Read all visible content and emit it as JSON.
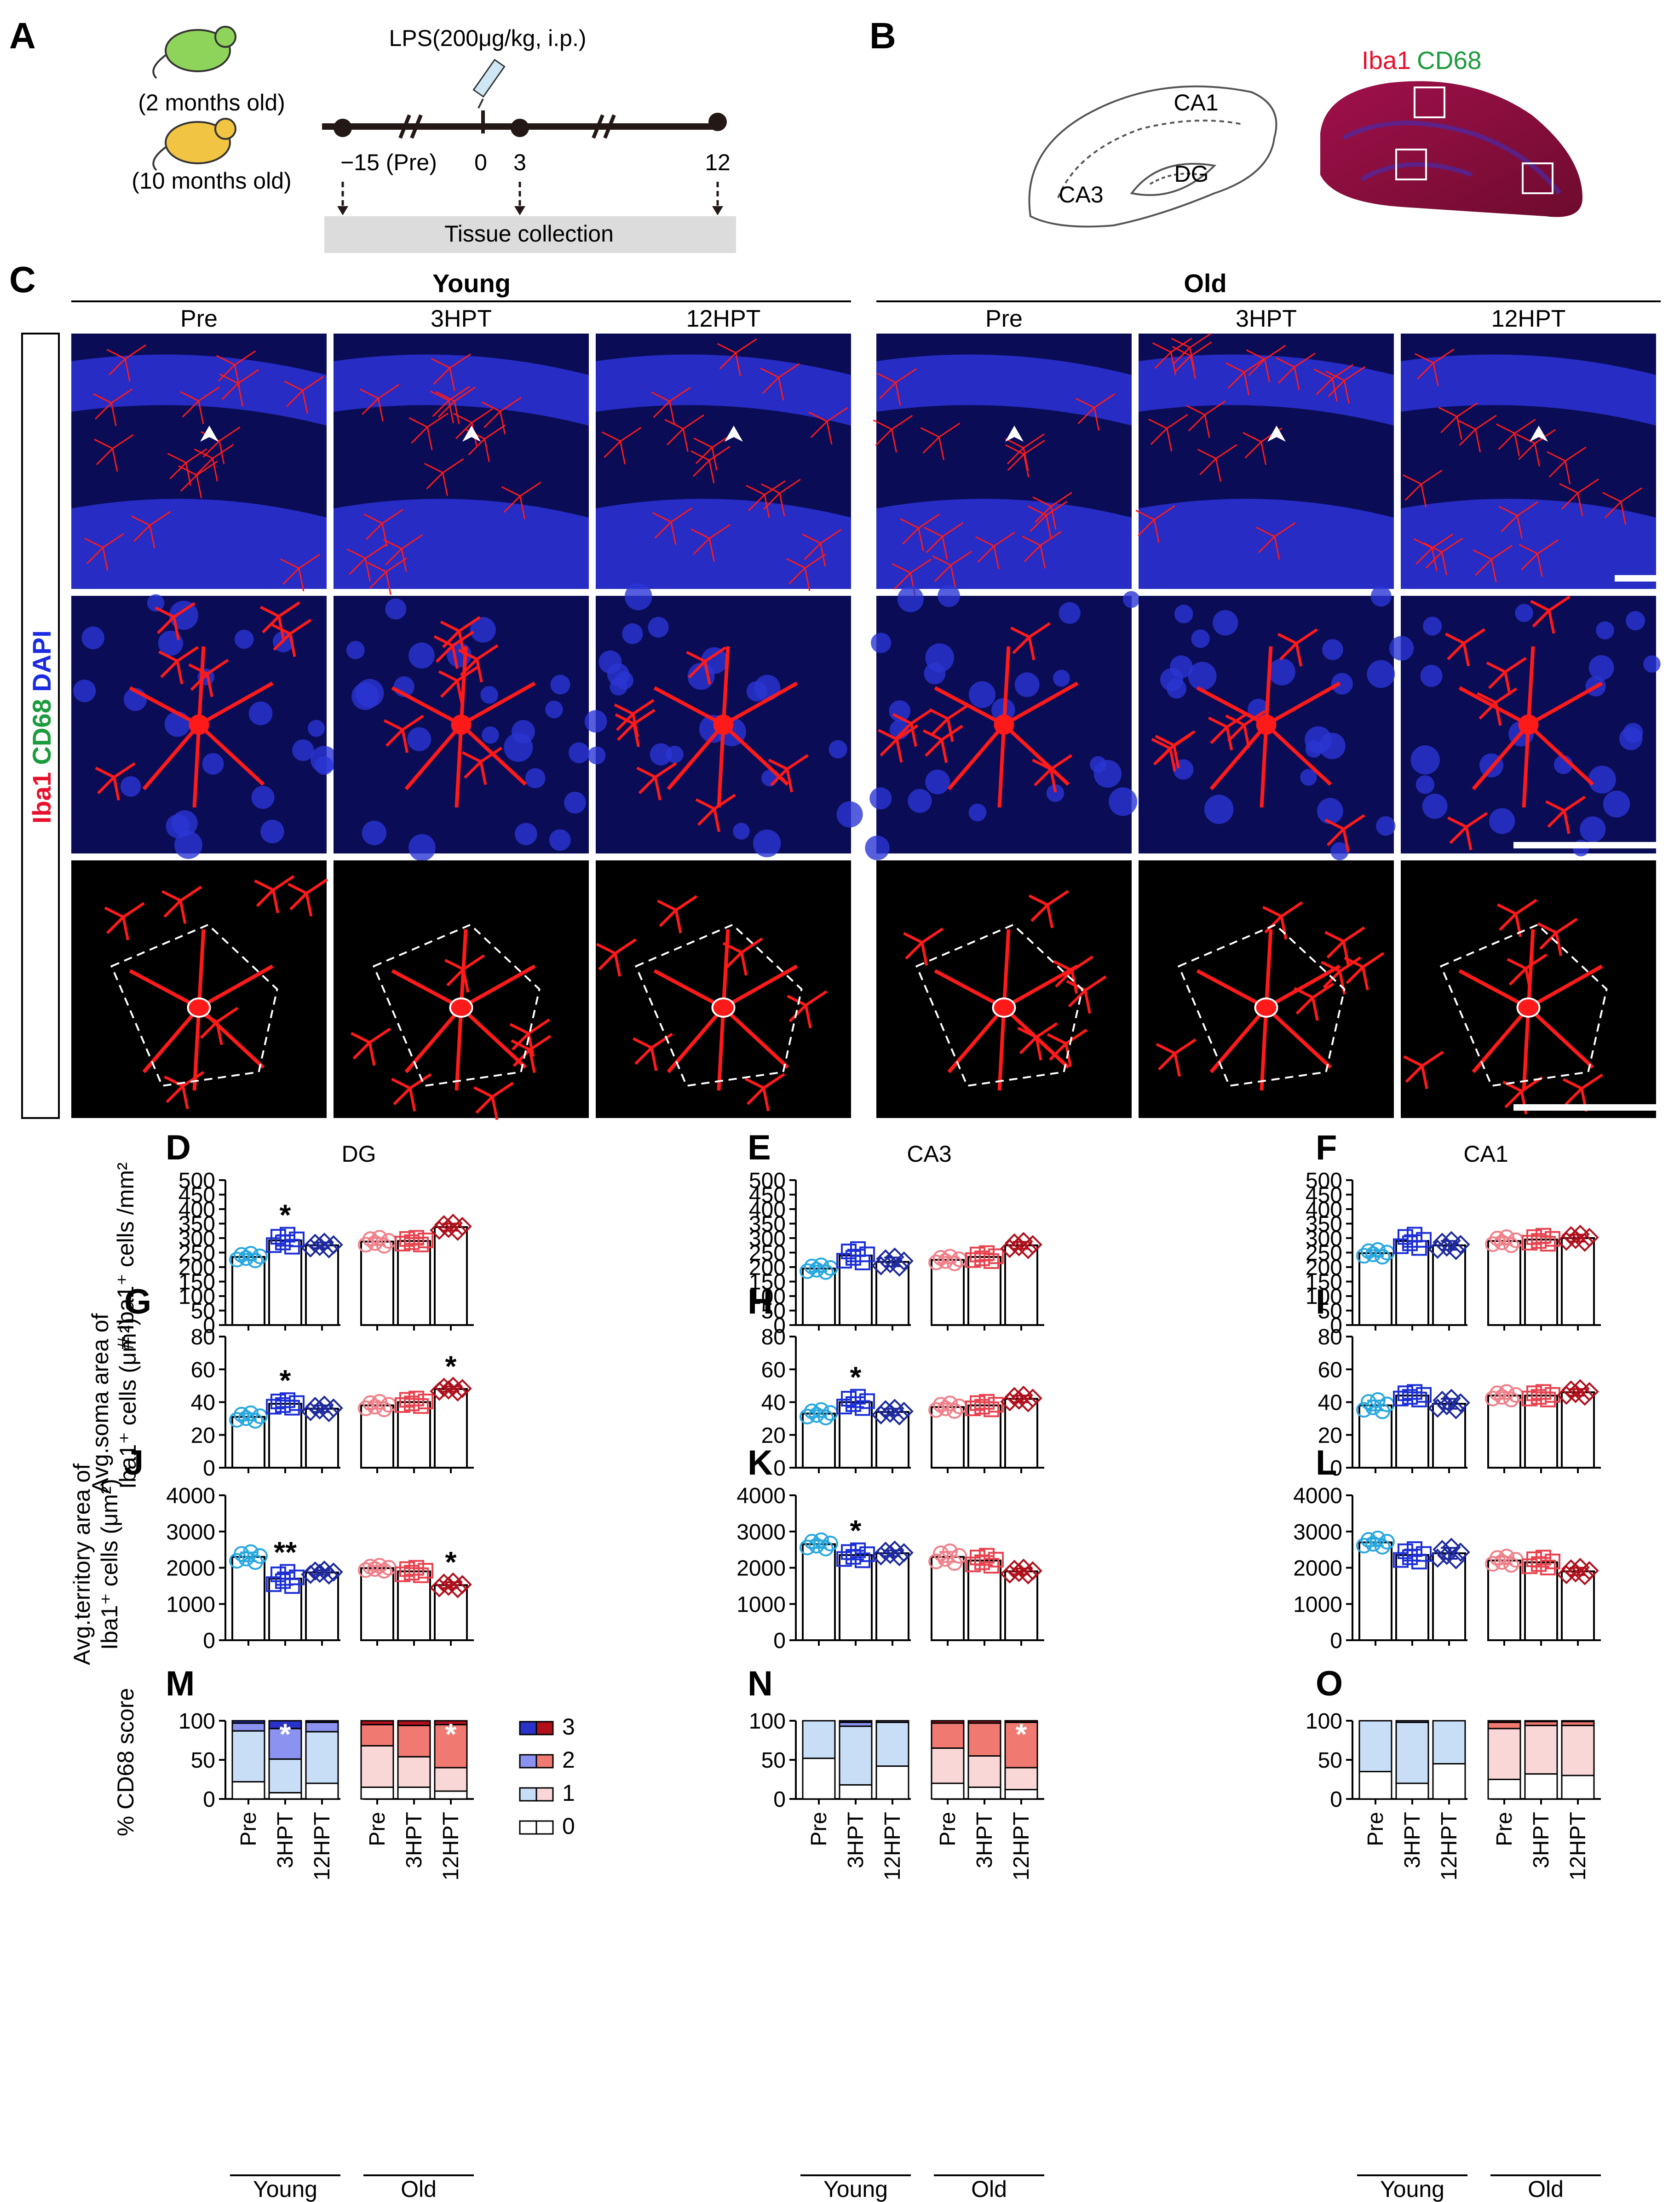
{
  "panelA": {
    "letter": "A",
    "age_young": "(2 months old)",
    "age_old": "(10 months old)",
    "injection": "LPS(200μg/kg, i.p.)",
    "tick_pre": "−15 (Pre)",
    "tick_0": "0",
    "tick_3": "3",
    "tick_12": "12",
    "tissue": "Tissue collection"
  },
  "panelB": {
    "letter": "B",
    "stain_iba1": "Iba1",
    "stain_cd68": "CD68",
    "ca1": "CA1",
    "ca3": "CA3",
    "dg": "DG",
    "colors": {
      "iba1": "#e8112d",
      "cd68": "#1a9b3c",
      "tissue": "#8a0f3a"
    }
  },
  "panelC": {
    "letter": "C",
    "group_young": "Young",
    "group_old": "Old",
    "columns": [
      "Pre",
      "3HPT",
      "12HPT",
      "Pre",
      "3HPT",
      "12HPT"
    ],
    "side_iba1": "Iba1",
    "side_cd68": "CD68",
    "side_dapi": "DAPI",
    "colors": {
      "iba1": "#e8112d",
      "cd68": "#1a9b3c",
      "dapi": "#1a2ae0"
    }
  },
  "letters": {
    "D": "D",
    "E": "E",
    "F": "F",
    "G": "G",
    "H": "H",
    "I": "I",
    "J": "J",
    "K": "K",
    "L": "L",
    "M": "M",
    "N": "N",
    "O": "O"
  },
  "region_titles": {
    "D": "DG",
    "E": "CA3",
    "F": "CA1"
  },
  "ylabels": {
    "count": "# Iba1⁺ cells /mm²",
    "soma_1": "Avg.soma area of",
    "soma_2": "Iba1⁺ cells (μm²)",
    "territory_1": "Avg.territory area of",
    "territory_2": "Iba1⁺ cells (μm²)",
    "cd68": "% CD68 score"
  },
  "xlabels": [
    "Pre",
    "3HPT",
    "12HPT",
    "Pre",
    "3HPT",
    "12HPT"
  ],
  "groups": [
    "Young",
    "Old"
  ],
  "legend": [
    "3",
    "2",
    "1",
    "0"
  ],
  "series_colors": {
    "young": [
      "#29a8e0",
      "#1c2fd6",
      "#1e2a9e"
    ],
    "old": [
      "#f0808a",
      "#e8434f",
      "#b0101c"
    ]
  },
  "chart_data": [
    {
      "panel": "D",
      "type": "bar",
      "title": "DG",
      "ylabel": "# Iba1⁺ cells /mm²",
      "categories": [
        "Pre",
        "3HPT",
        "12HPT",
        "Pre",
        "3HPT",
        "12HPT"
      ],
      "values": [
        235,
        292,
        275,
        288,
        290,
        338
      ],
      "errors": [
        10,
        18,
        10,
        12,
        10,
        12
      ],
      "ylim": [
        0,
        500
      ],
      "yticks": [
        0,
        50,
        100,
        150,
        200,
        250,
        300,
        350,
        400,
        450,
        500
      ],
      "significance": [
        "",
        "*",
        "",
        "",
        "",
        ""
      ]
    },
    {
      "panel": "E",
      "type": "bar",
      "title": "CA3",
      "ylabel": "",
      "categories": [
        "Pre",
        "3HPT",
        "12HPT",
        "Pre",
        "3HPT",
        "12HPT"
      ],
      "values": [
        195,
        240,
        218,
        225,
        235,
        275
      ],
      "errors": [
        10,
        20,
        15,
        10,
        12,
        12
      ],
      "ylim": [
        0,
        500
      ],
      "yticks": [
        0,
        50,
        100,
        150,
        200,
        250,
        300,
        350,
        400,
        450,
        500
      ],
      "significance": [
        "",
        "",
        "",
        "",
        "",
        ""
      ]
    },
    {
      "panel": "F",
      "type": "bar",
      "title": "CA1",
      "ylabel": "",
      "categories": [
        "Pre",
        "3HPT",
        "12HPT",
        "Pre",
        "3HPT",
        "12HPT"
      ],
      "values": [
        248,
        290,
        275,
        290,
        295,
        300
      ],
      "errors": [
        10,
        20,
        15,
        12,
        12,
        12
      ],
      "ylim": [
        0,
        500
      ],
      "yticks": [
        0,
        50,
        100,
        150,
        200,
        250,
        300,
        350,
        400,
        450,
        500
      ],
      "significance": [
        "",
        "",
        "",
        "",
        "",
        ""
      ]
    },
    {
      "panel": "G",
      "type": "bar",
      "title": "",
      "ylabel": "Avg.soma area of Iba1⁺ cells (μm²)",
      "categories": [
        "Pre",
        "3HPT",
        "12HPT",
        "Pre",
        "3HPT",
        "12HPT"
      ],
      "values": [
        31,
        39,
        36,
        38,
        40,
        48
      ],
      "errors": [
        2,
        2,
        2,
        2,
        2,
        1.5
      ],
      "ylim": [
        0,
        80
      ],
      "yticks": [
        0,
        20,
        40,
        60,
        80
      ],
      "significance": [
        "",
        "*",
        "",
        "",
        "",
        "*"
      ]
    },
    {
      "panel": "H",
      "type": "bar",
      "title": "",
      "ylabel": "",
      "categories": [
        "Pre",
        "3HPT",
        "12HPT",
        "Pre",
        "3HPT",
        "12HPT"
      ],
      "values": [
        33,
        40,
        34,
        37,
        38,
        42
      ],
      "errors": [
        2,
        3,
        2,
        2,
        2,
        2
      ],
      "ylim": [
        0,
        80
      ],
      "yticks": [
        0,
        20,
        40,
        60,
        80
      ],
      "significance": [
        "",
        "*",
        "",
        "",
        "",
        ""
      ]
    },
    {
      "panel": "I",
      "type": "bar",
      "title": "",
      "ylabel": "",
      "categories": [
        "Pre",
        "3HPT",
        "12HPT",
        "Pre",
        "3HPT",
        "12HPT"
      ],
      "values": [
        38,
        44,
        39,
        44,
        44,
        46
      ],
      "errors": [
        3,
        2,
        3,
        2,
        2,
        2
      ],
      "ylim": [
        0,
        80
      ],
      "yticks": [
        0,
        20,
        40,
        60,
        80
      ],
      "significance": [
        "",
        "",
        "",
        "",
        "",
        ""
      ]
    },
    {
      "panel": "J",
      "type": "bar",
      "title": "",
      "ylabel": "Avg.territory area of Iba1⁺ cells (μm²)",
      "categories": [
        "Pre",
        "3HPT",
        "12HPT",
        "Pre",
        "3HPT",
        "12HPT"
      ],
      "values": [
        2300,
        1700,
        1870,
        1990,
        1900,
        1520
      ],
      "errors": [
        120,
        170,
        60,
        60,
        90,
        80
      ],
      "ylim": [
        0,
        4000
      ],
      "yticks": [
        0,
        1000,
        2000,
        3000,
        4000
      ],
      "significance": [
        "",
        "**",
        "",
        "",
        "",
        "*"
      ]
    },
    {
      "panel": "K",
      "type": "bar",
      "title": "",
      "ylabel": "",
      "categories": [
        "Pre",
        "3HPT",
        "12HPT",
        "Pre",
        "3HPT",
        "12HPT"
      ],
      "values": [
        2650,
        2350,
        2400,
        2300,
        2200,
        1900
      ],
      "errors": [
        100,
        120,
        80,
        140,
        120,
        80
      ],
      "ylim": [
        0,
        4000
      ],
      "yticks": [
        0,
        1000,
        2000,
        3000,
        4000
      ],
      "significance": [
        "",
        "*",
        "",
        "",
        "",
        ""
      ]
    },
    {
      "panel": "L",
      "type": "bar",
      "title": "",
      "ylabel": "",
      "categories": [
        "Pre",
        "3HPT",
        "12HPT",
        "Pre",
        "3HPT",
        "12HPT"
      ],
      "values": [
        2700,
        2350,
        2400,
        2200,
        2150,
        1900
      ],
      "errors": [
        100,
        150,
        150,
        100,
        120,
        100
      ],
      "ylim": [
        0,
        4000
      ],
      "yticks": [
        0,
        1000,
        2000,
        3000,
        4000
      ],
      "significance": [
        "",
        "",
        "",
        "",
        "",
        ""
      ]
    },
    {
      "panel": "M",
      "type": "stacked-bar",
      "title": "",
      "ylabel": "% CD68 score",
      "categories": [
        "Pre",
        "3HPT",
        "12HPT",
        "Pre",
        "3HPT",
        "12HPT"
      ],
      "legend": [
        "3",
        "2",
        "1",
        "0"
      ],
      "segments": [
        [
          22,
          65,
          10,
          3
        ],
        [
          8,
          43,
          39,
          10
        ],
        [
          20,
          66,
          12,
          2
        ],
        [
          15,
          53,
          27,
          5
        ],
        [
          15,
          39,
          40,
          6
        ],
        [
          10,
          30,
          55,
          5
        ]
      ],
      "ylim": [
        0,
        100
      ],
      "yticks": [
        0,
        50,
        100
      ],
      "significance": [
        "",
        "*",
        "",
        "",
        "",
        "*"
      ]
    },
    {
      "panel": "N",
      "type": "stacked-bar",
      "title": "",
      "ylabel": "",
      "categories": [
        "Pre",
        "3HPT",
        "12HPT",
        "Pre",
        "3HPT",
        "12HPT"
      ],
      "legend": [
        "3",
        "2",
        "1",
        "0"
      ],
      "segments": [
        [
          52,
          48,
          0,
          0
        ],
        [
          18,
          75,
          5,
          2
        ],
        [
          42,
          56,
          2,
          0
        ],
        [
          20,
          45,
          32,
          3
        ],
        [
          15,
          40,
          42,
          3
        ],
        [
          12,
          28,
          58,
          2
        ]
      ],
      "ylim": [
        0,
        100
      ],
      "yticks": [
        0,
        50,
        100
      ],
      "significance": [
        "",
        "",
        "",
        "",
        "",
        "*"
      ]
    },
    {
      "panel": "O",
      "type": "stacked-bar",
      "title": "",
      "ylabel": "",
      "categories": [
        "Pre",
        "3HPT",
        "12HPT",
        "Pre",
        "3HPT",
        "12HPT"
      ],
      "legend": [
        "3",
        "2",
        "1",
        "0"
      ],
      "segments": [
        [
          35,
          65,
          0,
          0
        ],
        [
          20,
          78,
          2,
          0
        ],
        [
          45,
          55,
          0,
          0
        ],
        [
          25,
          65,
          8,
          2
        ],
        [
          32,
          62,
          5,
          1
        ],
        [
          30,
          64,
          5,
          1
        ]
      ],
      "ylim": [
        0,
        100
      ],
      "yticks": [
        0,
        50,
        100
      ],
      "significance": [
        "",
        "",
        "",
        "",
        "",
        ""
      ]
    }
  ]
}
